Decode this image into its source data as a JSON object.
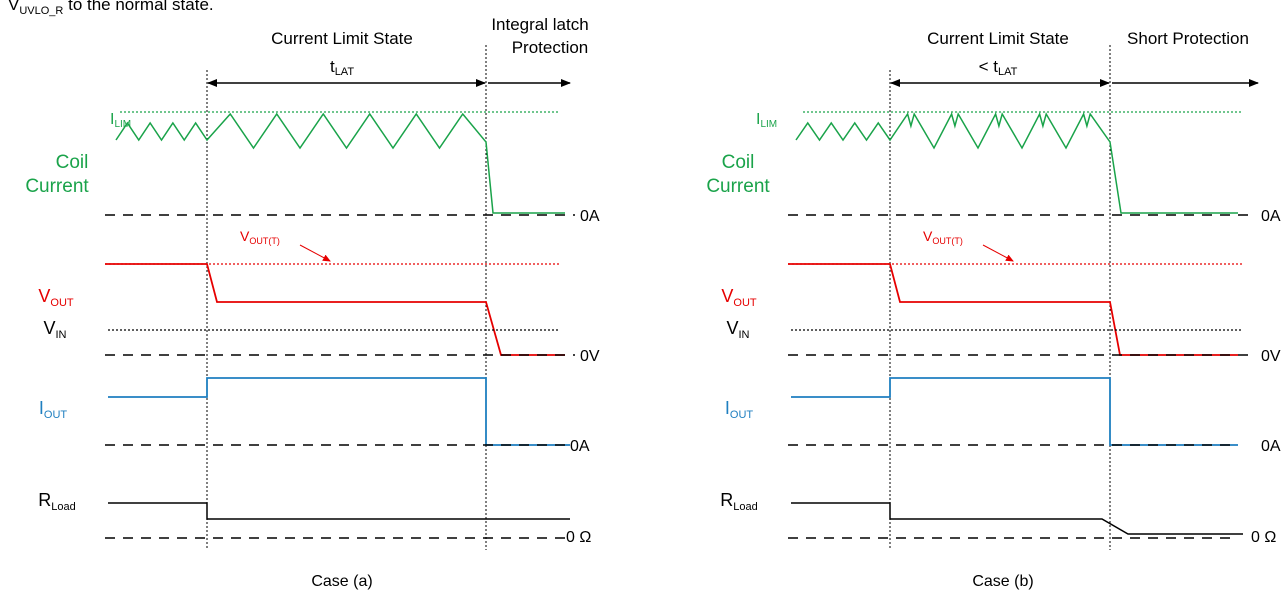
{
  "intro_text": {
    "base": "V",
    "sub": "UVLO_R",
    "tail": " to the normal state."
  },
  "colors": {
    "coil": "#1aa34a",
    "vout": "#e60000",
    "iout": "#1f7fc0",
    "load": "#000000",
    "reference": "#000000"
  },
  "panels": [
    {
      "id": "a",
      "caption": "Case (a)",
      "state1": {
        "title": "Current Limit State",
        "duration_base": "t",
        "duration_sub": "LAT",
        "duration_prefix": ""
      },
      "state2": {
        "title_line1": "Integral latch",
        "title_line2": "Protection"
      },
      "labels": {
        "ilim": {
          "base": "I",
          "sub": "LIM"
        },
        "coil_line1": "Coil",
        "coil_line2": "Current",
        "vout_t": {
          "base": "V",
          "sub": "OUT(T)"
        },
        "vout": {
          "base": "V",
          "sub": "OUT"
        },
        "vin": {
          "base": "V",
          "sub": "IN"
        },
        "iout": {
          "base": "I",
          "sub": "OUT"
        },
        "rload": {
          "base": "R",
          "sub": "Load"
        }
      },
      "ref_labels": {
        "coil_zero": "0A",
        "vout_zero": "0V",
        "iout_zero": "0A",
        "load_zero": "0 Ω"
      },
      "coil_ripple": {
        "before_peaks": 4,
        "during_peaks": 6,
        "during_shape": "triangle"
      },
      "load_final": "low"
    },
    {
      "id": "b",
      "caption": "Case (b)",
      "state1": {
        "title": "Current Limit State",
        "duration_base": "t",
        "duration_sub": "LAT",
        "duration_prefix": "< "
      },
      "state2": {
        "title_line1": "Short Protection",
        "title_line2": ""
      },
      "labels": {
        "ilim": {
          "base": "I",
          "sub": "LIM"
        },
        "coil_line1": "Coil",
        "coil_line2": "Current",
        "vout_t": {
          "base": "V",
          "sub": "OUT(T)"
        },
        "vout": {
          "base": "V",
          "sub": "OUT"
        },
        "vin": {
          "base": "V",
          "sub": "IN"
        },
        "iout": {
          "base": "I",
          "sub": "OUT"
        },
        "rload": {
          "base": "R",
          "sub": "Load"
        }
      },
      "ref_labels": {
        "coil_zero": "0A",
        "vout_zero": "0V",
        "iout_zero": "0A",
        "load_zero": "0 Ω"
      },
      "coil_ripple": {
        "before_peaks": 4,
        "during_peaks": 5,
        "during_shape": "double-peak"
      },
      "load_final": "zero"
    }
  ]
}
